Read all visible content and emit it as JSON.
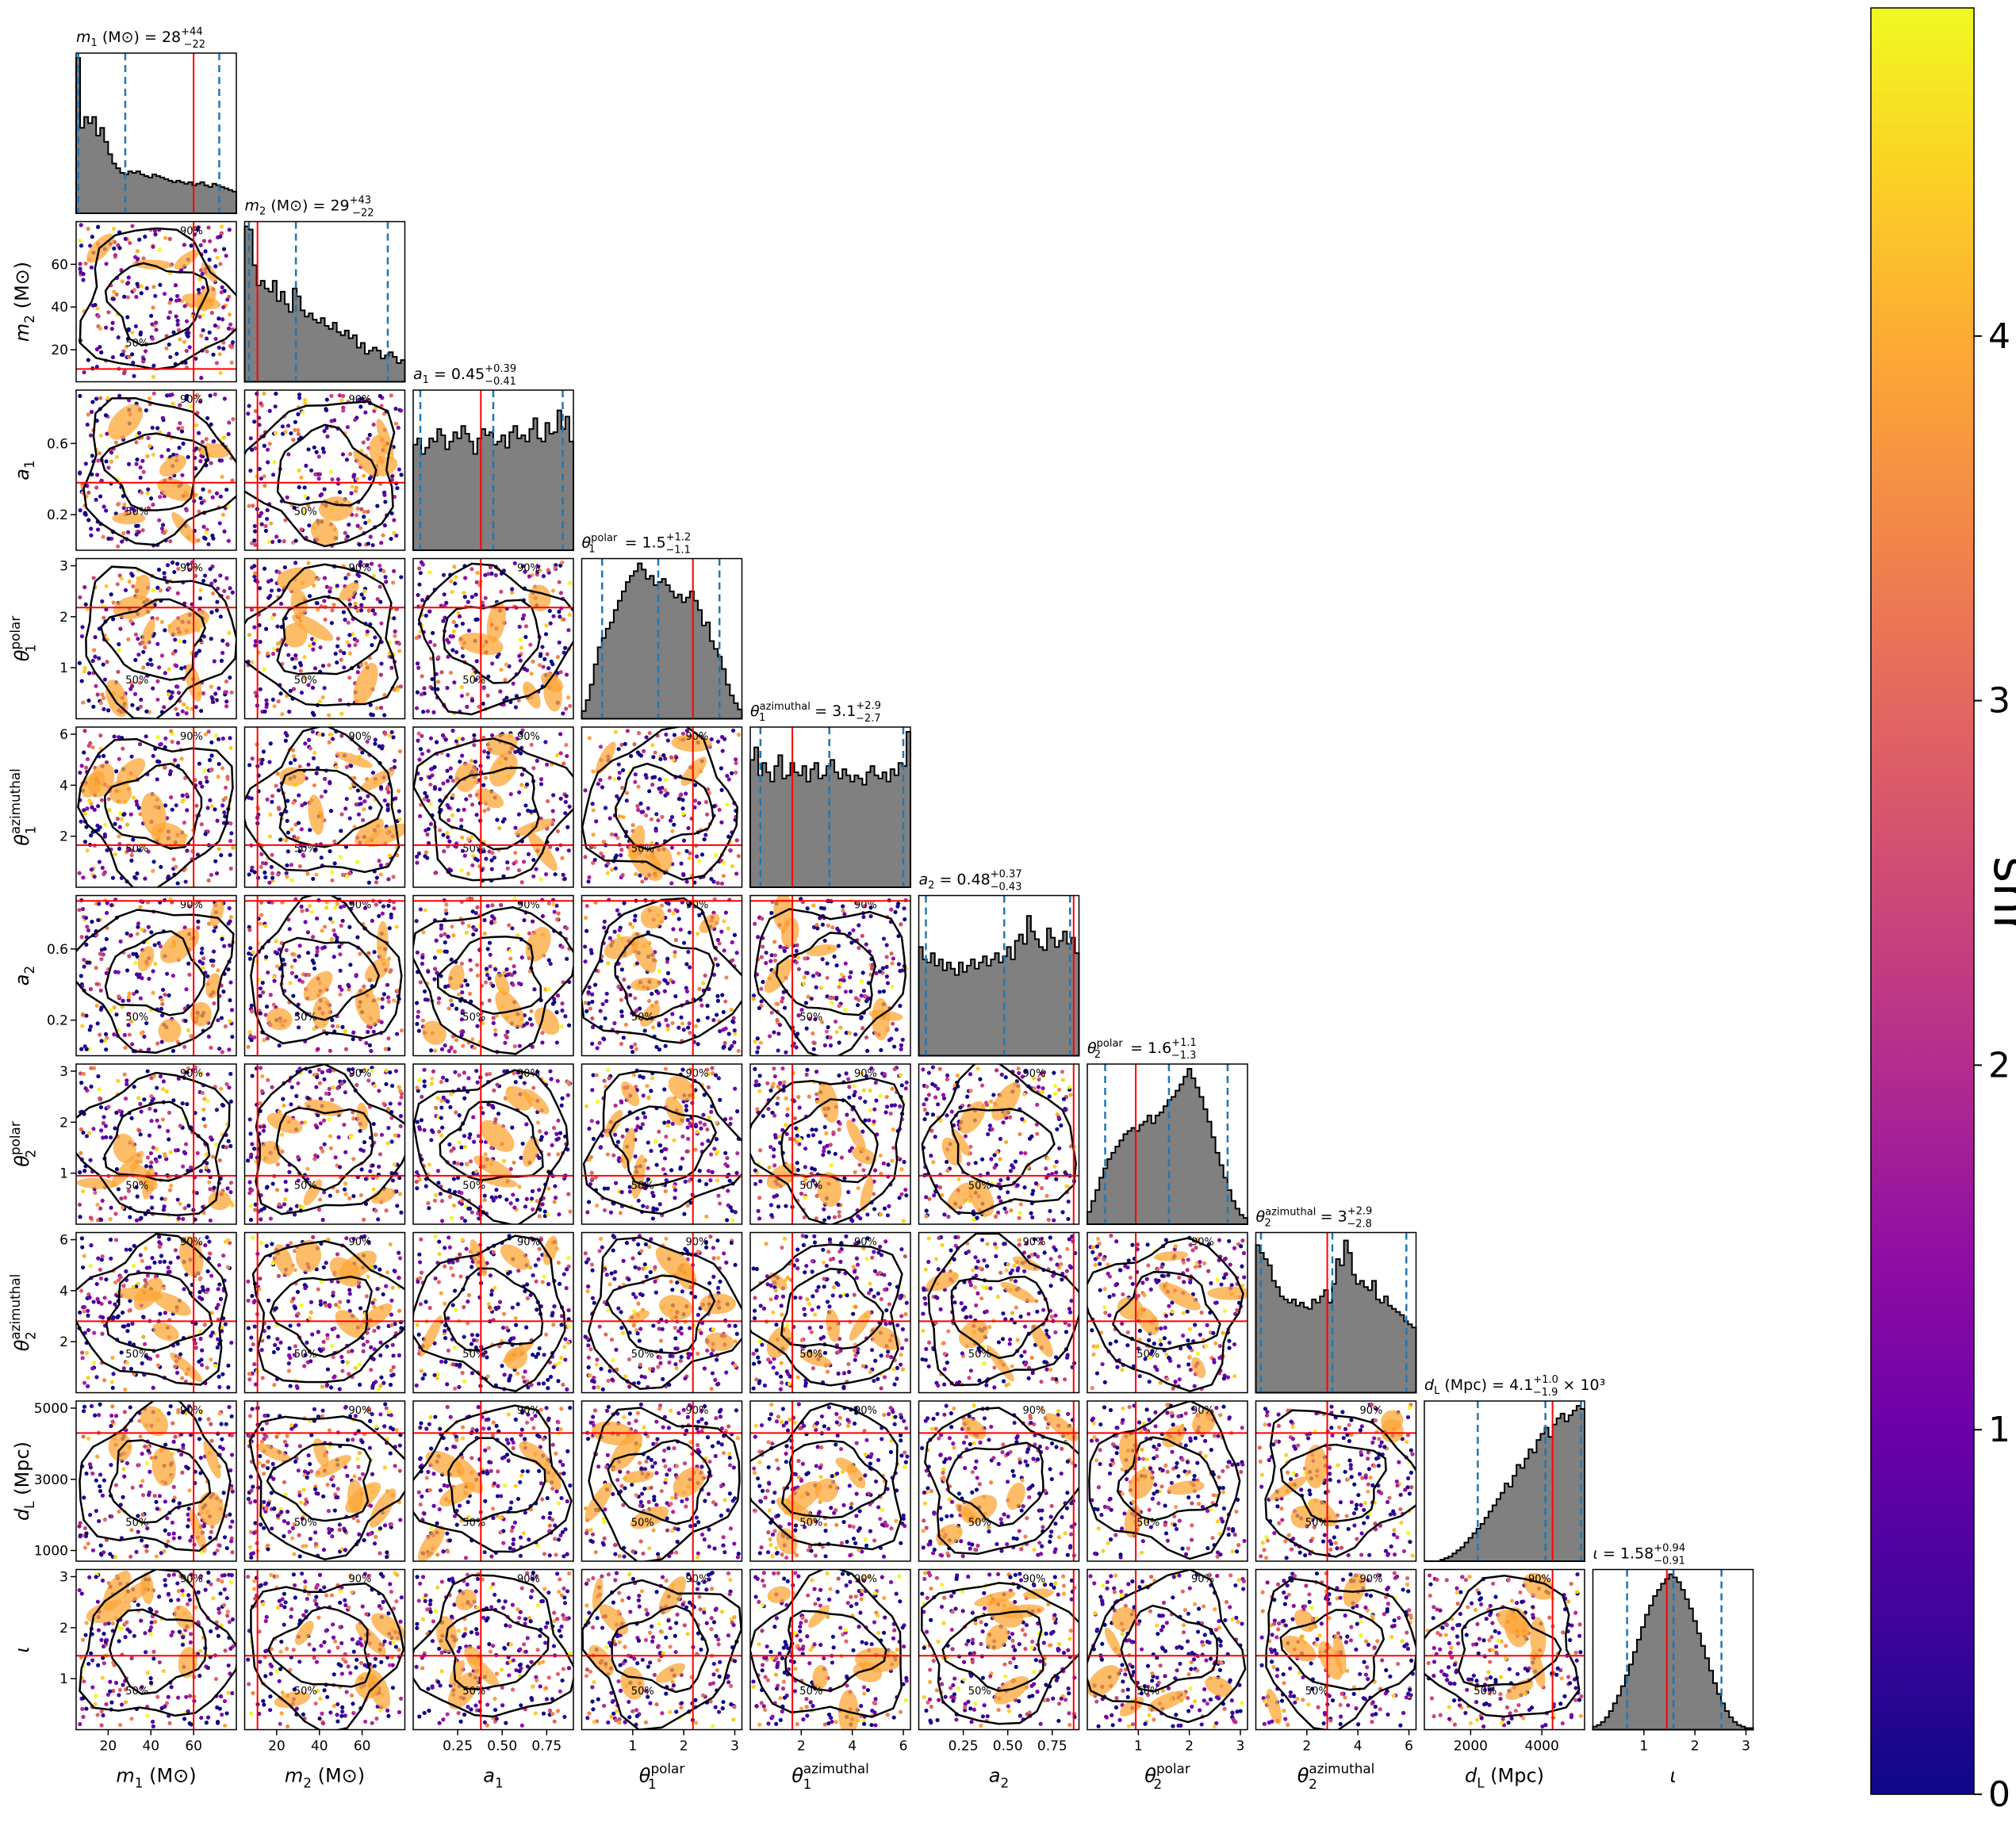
{
  "chart_data": {
    "type": "scatter",
    "subtype": "corner-plot",
    "parameters": [
      {
        "key": "m1",
        "label_main": "m",
        "label_sub": "1",
        "label_sup": "",
        "label_unit": "(M⊙)",
        "title_text": "= 28",
        "title_sup": "+44",
        "title_sub": "−22",
        "title_suffix": "",
        "range": [
          5,
          80
        ],
        "ticks": [
          20,
          40,
          60
        ],
        "tick_labels": [
          "20",
          "40",
          "60"
        ],
        "median": 28,
        "lower": 6,
        "upper": 72,
        "truth": 60,
        "hist": [
          1.0,
          0.55,
          0.62,
          0.58,
          0.62,
          0.5,
          0.55,
          0.46,
          0.38,
          0.32,
          0.29,
          0.26,
          0.25,
          0.27,
          0.26,
          0.27,
          0.25,
          0.24,
          0.23,
          0.25,
          0.24,
          0.23,
          0.22,
          0.21,
          0.2,
          0.21,
          0.2,
          0.19,
          0.2,
          0.18,
          0.19,
          0.2,
          0.18,
          0.17,
          0.19,
          0.18,
          0.17,
          0.16,
          0.15,
          0.14
        ]
      },
      {
        "key": "m2",
        "label_main": "m",
        "label_sub": "2",
        "label_sup": "",
        "label_unit": "(M⊙)",
        "title_text": "= 29",
        "title_sup": "+43",
        "title_sub": "−22",
        "title_suffix": "",
        "range": [
          5,
          80
        ],
        "ticks": [
          20,
          40,
          60
        ],
        "tick_labels": [
          "20",
          "40",
          "60"
        ],
        "median": 29,
        "lower": 7,
        "upper": 72,
        "truth": 11,
        "hist": [
          1.0,
          0.98,
          0.75,
          0.62,
          0.65,
          0.6,
          0.58,
          0.65,
          0.52,
          0.58,
          0.5,
          0.45,
          0.6,
          0.55,
          0.46,
          0.42,
          0.44,
          0.4,
          0.38,
          0.41,
          0.36,
          0.34,
          0.38,
          0.32,
          0.3,
          0.33,
          0.28,
          0.3,
          0.22,
          0.25,
          0.18,
          0.2,
          0.22,
          0.2,
          0.15,
          0.17,
          0.19,
          0.16,
          0.12,
          0.14
        ]
      },
      {
        "key": "a1",
        "label_main": "a",
        "label_sub": "1",
        "label_sup": "",
        "label_unit": "",
        "title_text": "= 0.45",
        "title_sup": "+0.39",
        "title_sub": "−0.41",
        "title_suffix": "",
        "range": [
          0,
          0.9
        ],
        "ticks": [
          0.25,
          0.5,
          0.75
        ],
        "tick_labels": [
          "0.25",
          "0.50",
          "0.75"
        ],
        "ticks_y": [
          0.2,
          0.6
        ],
        "tick_labels_y": [
          "0.2",
          "0.6"
        ],
        "median": 0.45,
        "lower": 0.04,
        "upper": 0.84,
        "truth": 0.38,
        "hist": [
          0.68,
          0.72,
          0.62,
          0.66,
          0.72,
          0.7,
          0.78,
          0.74,
          0.65,
          0.7,
          0.76,
          0.72,
          0.8,
          0.75,
          0.7,
          0.62,
          0.72,
          0.78,
          0.74,
          0.76,
          0.68,
          0.7,
          0.74,
          0.66,
          0.76,
          0.8,
          0.72,
          0.74,
          0.7,
          0.78,
          0.85,
          0.72,
          0.7,
          0.82,
          0.75,
          0.76,
          0.9,
          0.78,
          0.86,
          0.7
        ]
      },
      {
        "key": "t1p",
        "label_main": "θ",
        "label_sub": "1",
        "label_sup": "polar",
        "label_unit": "",
        "title_text": "= 1.5",
        "title_sup": "+1.2",
        "title_sub": "−1.1",
        "title_suffix": "",
        "range": [
          0,
          3.14
        ],
        "ticks": [
          1,
          2,
          3
        ],
        "tick_labels": [
          "1",
          "2",
          "3"
        ],
        "median": 1.5,
        "lower": 0.4,
        "upper": 2.7,
        "truth": 2.18,
        "hist": [
          0.05,
          0.12,
          0.22,
          0.35,
          0.46,
          0.52,
          0.58,
          0.62,
          0.7,
          0.76,
          0.82,
          0.88,
          0.92,
          0.95,
          1.0,
          0.96,
          0.9,
          0.92,
          0.86,
          0.88,
          0.9,
          0.86,
          0.82,
          0.78,
          0.8,
          0.75,
          0.78,
          0.82,
          0.76,
          0.7,
          0.6,
          0.62,
          0.5,
          0.45,
          0.4,
          0.32,
          0.22,
          0.15,
          0.1,
          0.06
        ]
      },
      {
        "key": "t1a",
        "label_main": "θ",
        "label_sub": "1",
        "label_sup": "azimuthal",
        "label_unit": "",
        "title_text": "= 3.1",
        "title_sup": "+2.9",
        "title_sub": "−2.7",
        "title_suffix": "",
        "range": [
          0,
          6.28
        ],
        "ticks": [
          2,
          4,
          6
        ],
        "tick_labels": [
          "2",
          "4",
          "6"
        ],
        "median": 3.1,
        "lower": 0.4,
        "upper": 6.0,
        "truth": 1.65,
        "hist": [
          0.82,
          0.9,
          0.72,
          0.8,
          0.74,
          0.68,
          0.78,
          0.85,
          0.7,
          0.72,
          0.8,
          0.74,
          0.72,
          0.78,
          0.68,
          0.76,
          0.8,
          0.7,
          0.72,
          0.78,
          0.82,
          0.74,
          0.7,
          0.76,
          0.72,
          0.68,
          0.72,
          0.7,
          0.66,
          0.74,
          0.78,
          0.72,
          0.7,
          0.74,
          0.68,
          0.76,
          0.72,
          0.8,
          0.78,
          1.0
        ]
      },
      {
        "key": "a2",
        "label_main": "a",
        "label_sub": "2",
        "label_sup": "",
        "label_unit": "",
        "title_text": "= 0.48",
        "title_sup": "+0.37",
        "title_sub": "−0.43",
        "title_suffix": "",
        "range": [
          0,
          0.9
        ],
        "ticks": [
          0.25,
          0.5,
          0.75
        ],
        "tick_labels": [
          "0.25",
          "0.50",
          "0.75"
        ],
        "ticks_y": [
          0.2,
          0.6
        ],
        "tick_labels_y": [
          "0.2",
          "0.6"
        ],
        "median": 0.48,
        "lower": 0.04,
        "upper": 0.85,
        "truth": 0.87,
        "hist": [
          0.7,
          0.62,
          0.6,
          0.66,
          0.58,
          0.62,
          0.55,
          0.6,
          0.56,
          0.52,
          0.6,
          0.54,
          0.58,
          0.62,
          0.56,
          0.6,
          0.64,
          0.58,
          0.62,
          0.66,
          0.6,
          0.64,
          0.7,
          0.62,
          0.74,
          0.78,
          0.72,
          0.9,
          0.8,
          0.75,
          0.7,
          0.68,
          0.82,
          0.76,
          0.7,
          0.74,
          0.8,
          0.72,
          0.76,
          0.66
        ]
      },
      {
        "key": "t2p",
        "label_main": "θ",
        "label_sub": "2",
        "label_sup": "polar",
        "label_unit": "",
        "title_text": "= 1.6",
        "title_sup": "+1.1",
        "title_sub": "−1.3",
        "title_suffix": "",
        "range": [
          0,
          3.14
        ],
        "ticks": [
          1,
          2,
          3
        ],
        "tick_labels": [
          "1",
          "2",
          "3"
        ],
        "median": 1.6,
        "lower": 0.35,
        "upper": 2.75,
        "truth": 0.95,
        "hist": [
          0.08,
          0.15,
          0.22,
          0.3,
          0.36,
          0.42,
          0.46,
          0.5,
          0.54,
          0.58,
          0.6,
          0.62,
          0.6,
          0.64,
          0.66,
          0.7,
          0.65,
          0.7,
          0.72,
          0.76,
          0.8,
          0.82,
          0.86,
          0.9,
          0.95,
          1.0,
          0.94,
          0.88,
          0.82,
          0.74,
          0.66,
          0.56,
          0.46,
          0.38,
          0.3,
          0.22,
          0.15,
          0.1,
          0.06,
          0.04
        ]
      },
      {
        "key": "t2a",
        "label_main": "θ",
        "label_sub": "2",
        "label_sup": "azimuthal",
        "label_unit": "",
        "title_text": "= 3",
        "title_sup": "+2.9",
        "title_sub": "−2.8",
        "title_suffix": "",
        "range": [
          0,
          6.28
        ],
        "ticks": [
          2,
          4,
          6
        ],
        "tick_labels": [
          "2",
          "4",
          "6"
        ],
        "median": 3.0,
        "lower": 0.2,
        "upper": 5.9,
        "truth": 2.8,
        "hist": [
          0.95,
          0.9,
          0.86,
          0.82,
          0.72,
          0.68,
          0.62,
          0.6,
          0.58,
          0.6,
          0.56,
          0.58,
          0.55,
          0.54,
          0.6,
          0.58,
          0.62,
          0.66,
          0.58,
          0.7,
          0.86,
          0.82,
          0.98,
          0.9,
          0.76,
          0.7,
          0.72,
          0.68,
          0.66,
          0.72,
          0.6,
          0.58,
          0.62,
          0.56,
          0.54,
          0.52,
          0.5,
          0.46,
          0.44,
          0.42
        ]
      },
      {
        "key": "dl",
        "label_main": "d",
        "label_sub": "L",
        "label_sup": "",
        "label_unit": "(Mpc)",
        "title_text": "(Mpc) = 4.1",
        "title_sup": "+1.0",
        "title_sub": "−1.9",
        "title_suffix": "× 10³",
        "range": [
          700,
          5200
        ],
        "ticks": [
          2000,
          4000
        ],
        "tick_labels": [
          "2000",
          "4000"
        ],
        "ticks_y": [
          1000,
          3000,
          5000
        ],
        "tick_labels_y": [
          "1000",
          "3000",
          "5000"
        ],
        "median": 4100,
        "lower": 2200,
        "upper": 5100,
        "truth": 4300,
        "hist": [
          0.0,
          0.0,
          0.0,
          0.0,
          0.01,
          0.02,
          0.03,
          0.05,
          0.07,
          0.09,
          0.12,
          0.15,
          0.18,
          0.21,
          0.24,
          0.28,
          0.32,
          0.36,
          0.4,
          0.44,
          0.5,
          0.48,
          0.55,
          0.62,
          0.6,
          0.66,
          0.72,
          0.7,
          0.78,
          0.82,
          0.86,
          0.8,
          0.88,
          0.92,
          0.95,
          0.9,
          0.94,
          0.97,
          1.0,
          0.98
        ]
      },
      {
        "key": "iota",
        "label_main": "ι",
        "label_sub": "",
        "label_sup": "",
        "label_unit": "",
        "title_text": "= 1.58",
        "title_sup": "+0.94",
        "title_sub": "−0.91",
        "title_suffix": "",
        "range": [
          0,
          3.14
        ],
        "ticks": [
          1,
          2,
          3
        ],
        "tick_labels": [
          "1",
          "2",
          "3"
        ],
        "median": 1.58,
        "lower": 0.67,
        "upper": 2.52,
        "truth": 1.45,
        "hist": [
          0.02,
          0.03,
          0.05,
          0.08,
          0.12,
          0.17,
          0.22,
          0.28,
          0.35,
          0.42,
          0.5,
          0.58,
          0.66,
          0.74,
          0.8,
          0.86,
          0.9,
          0.94,
          0.97,
          1.0,
          0.98,
          0.95,
          0.9,
          0.84,
          0.78,
          0.7,
          0.62,
          0.54,
          0.46,
          0.38,
          0.3,
          0.23,
          0.17,
          0.12,
          0.08,
          0.05,
          0.03,
          0.02,
          0.01,
          0.01
        ]
      }
    ],
    "contour_levels": [
      "50%",
      "90%"
    ],
    "colorbar": {
      "label": "snr",
      "min": 0,
      "max": 4.9,
      "ticks": [
        0,
        1,
        2,
        3,
        4
      ],
      "tick_labels": [
        "0",
        "1",
        "2",
        "3",
        "4"
      ],
      "colormap": "plasma",
      "colors": [
        "#0d0887",
        "#41049d",
        "#6a00a8",
        "#8f0da4",
        "#b12a90",
        "#cc4778",
        "#e16462",
        "#f2844b",
        "#fca636",
        "#fcce25",
        "#f0f921"
      ]
    },
    "colors": {
      "hist_fill": "#808080",
      "truth_line": "#ff0000",
      "quantile_line": "#1f77b4",
      "contour": "#000000"
    }
  }
}
